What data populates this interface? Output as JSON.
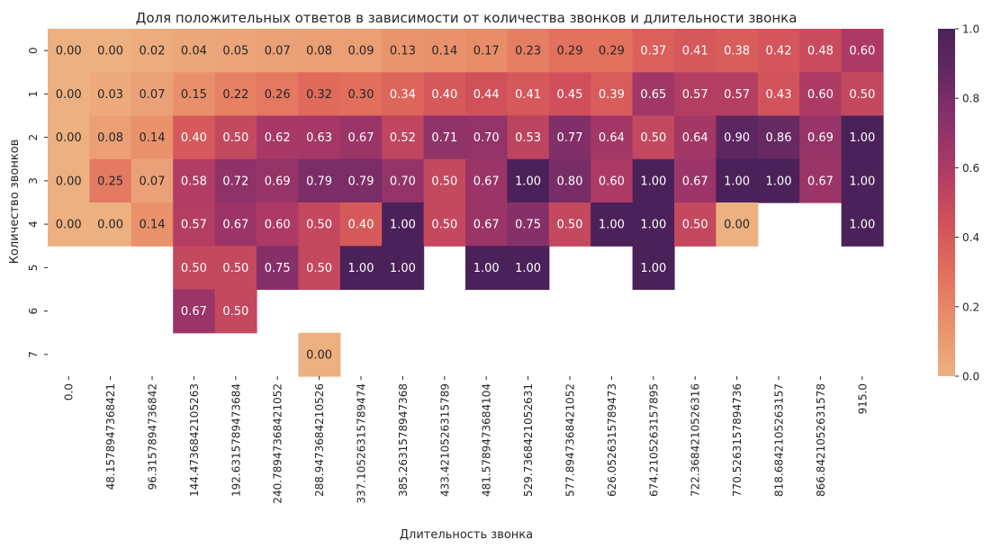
{
  "chart_data": {
    "type": "heatmap",
    "title": "Доля положительных ответов в зависимости от количества звонков и длительности звонка",
    "xlabel": "Длительность звонка",
    "ylabel": "Количество звонков",
    "x_categories": [
      "0.0",
      "48.1578947368421",
      "96.3157894736842",
      "144.4736842105263",
      "192.6315789473684",
      "240.78947368421052",
      "288.9473684210526",
      "337.10526315789474",
      "385.2631578947368",
      "433.4210526315789",
      "481.5789473684104",
      "529.7368421052631",
      "577.8947368421052",
      "626.0526315789473",
      "674.2105263157895",
      "722.3684210526316",
      "770.5263157894736",
      "818.6842105263157",
      "866.8421052631578",
      "915.0"
    ],
    "y_categories": [
      "0",
      "1",
      "2",
      "3",
      "4",
      "5",
      "6",
      "7"
    ],
    "values": [
      [
        0.0,
        0.0,
        0.02,
        0.04,
        0.05,
        0.07,
        0.08,
        0.09,
        0.13,
        0.14,
        0.17,
        0.23,
        0.29,
        0.29,
        0.37,
        0.41,
        0.38,
        0.42,
        0.48,
        0.6
      ],
      [
        0.0,
        0.03,
        0.07,
        0.15,
        0.22,
        0.26,
        0.32,
        0.3,
        0.34,
        0.4,
        0.44,
        0.41,
        0.45,
        0.39,
        0.65,
        0.57,
        0.57,
        0.43,
        0.6,
        0.5
      ],
      [
        0.0,
        0.08,
        0.14,
        0.4,
        0.5,
        0.62,
        0.63,
        0.67,
        0.52,
        0.71,
        0.7,
        0.53,
        0.77,
        0.64,
        0.5,
        0.64,
        0.9,
        0.86,
        0.69,
        1.0
      ],
      [
        0.0,
        0.25,
        0.07,
        0.58,
        0.72,
        0.69,
        0.79,
        0.79,
        0.7,
        0.5,
        0.67,
        1.0,
        0.8,
        0.6,
        1.0,
        0.67,
        1.0,
        1.0,
        0.67,
        1.0
      ],
      [
        0.0,
        0.0,
        0.14,
        0.57,
        0.67,
        0.6,
        0.5,
        0.4,
        1.0,
        0.5,
        0.67,
        0.75,
        0.5,
        1.0,
        1.0,
        0.5,
        0.0,
        null,
        null,
        1.0
      ],
      [
        null,
        null,
        null,
        0.5,
        0.5,
        0.75,
        0.5,
        1.0,
        1.0,
        null,
        1.0,
        1.0,
        null,
        null,
        1.0,
        null,
        null,
        null,
        null,
        null
      ],
      [
        null,
        null,
        null,
        0.67,
        0.5,
        null,
        null,
        null,
        null,
        null,
        null,
        null,
        null,
        null,
        null,
        null,
        null,
        null,
        null,
        null
      ],
      [
        null,
        null,
        null,
        null,
        null,
        null,
        0.0,
        null,
        null,
        null,
        null,
        null,
        null,
        null,
        null,
        null,
        null,
        null,
        null,
        null
      ]
    ],
    "value_range": [
      0,
      1
    ],
    "colormap": "flare",
    "colorbar_ticks": [
      "0.0",
      "0.2",
      "0.4",
      "0.6",
      "0.8",
      "1.0"
    ],
    "annotations_format": "0.00"
  }
}
